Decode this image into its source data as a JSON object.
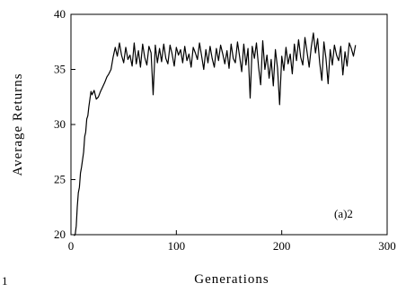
{
  "chart_data": {
    "type": "line",
    "title": "",
    "xlabel": "Generations",
    "ylabel": "Average Returns",
    "xlim": [
      0,
      300
    ],
    "ylim": [
      20,
      40
    ],
    "x_ticks": [
      0,
      100,
      200,
      300
    ],
    "y_ticks": [
      20,
      25,
      30,
      35,
      40
    ],
    "grid": false,
    "annotation": "(a)2",
    "series": [
      {
        "color": "#000000",
        "x": [
          3,
          4,
          5,
          6,
          7,
          8,
          9,
          10,
          11,
          12,
          13,
          14,
          15,
          16,
          17,
          18,
          19,
          20,
          22,
          24,
          26,
          28,
          30,
          32,
          34,
          36,
          38,
          40,
          42,
          44,
          46,
          48,
          50,
          52,
          54,
          56,
          58,
          60,
          62,
          64,
          66,
          68,
          70,
          72,
          74,
          76,
          78,
          80,
          82,
          84,
          86,
          88,
          90,
          92,
          94,
          96,
          98,
          100,
          102,
          104,
          106,
          108,
          110,
          112,
          114,
          116,
          118,
          120,
          122,
          124,
          126,
          128,
          130,
          132,
          134,
          136,
          138,
          140,
          142,
          144,
          146,
          148,
          150,
          152,
          154,
          156,
          158,
          160,
          162,
          164,
          166,
          168,
          170,
          172,
          174,
          176,
          178,
          180,
          182,
          184,
          186,
          188,
          190,
          192,
          194,
          196,
          198,
          200,
          202,
          204,
          206,
          208,
          210,
          212,
          214,
          216,
          218,
          220,
          222,
          224,
          226,
          228,
          230,
          232,
          234,
          236,
          238,
          240,
          242,
          244,
          246,
          248,
          250,
          252,
          254,
          256,
          258,
          260,
          262,
          264,
          266,
          268,
          270
        ],
        "y": [
          19.9,
          20.0,
          20.8,
          22.5,
          23.8,
          24.3,
          25.6,
          26.1,
          26.8,
          27.5,
          28.9,
          29.3,
          30.5,
          30.8,
          31.6,
          32.3,
          33.0,
          32.7,
          33.1,
          32.3,
          32.5,
          33.0,
          33.4,
          33.8,
          34.3,
          34.6,
          35.0,
          36.1,
          37.0,
          36.2,
          37.4,
          36.3,
          35.6,
          37.0,
          35.9,
          36.3,
          35.3,
          37.4,
          35.5,
          36.7,
          35.2,
          37.3,
          36.1,
          35.4,
          37.1,
          36.5,
          32.7,
          37.2,
          35.6,
          36.9,
          35.7,
          37.3,
          36.0,
          35.5,
          37.2,
          36.4,
          35.3,
          37.0,
          36.3,
          36.8,
          35.6,
          37.1,
          35.8,
          36.4,
          35.2,
          37.0,
          36.5,
          35.9,
          37.4,
          36.2,
          35.0,
          36.8,
          35.6,
          37.1,
          36.0,
          35.2,
          36.9,
          35.8,
          37.2,
          36.4,
          35.5,
          36.7,
          35.1,
          37.3,
          36.0,
          35.6,
          37.5,
          36.2,
          34.8,
          37.3,
          35.4,
          36.9,
          32.4,
          37.1,
          36.0,
          37.4,
          35.2,
          33.6,
          37.6,
          35.0,
          36.3,
          34.2,
          35.9,
          33.5,
          36.8,
          35.1,
          31.8,
          36.2,
          34.9,
          37.0,
          35.5,
          36.4,
          34.6,
          37.3,
          35.8,
          37.7,
          36.1,
          35.4,
          37.9,
          36.6,
          35.2,
          37.0,
          38.3,
          36.5,
          37.8,
          35.6,
          34.0,
          37.5,
          36.0,
          33.7,
          36.8,
          35.4,
          37.2,
          36.3,
          35.8,
          37.1,
          34.5,
          36.6,
          35.3,
          37.4,
          36.9,
          36.2,
          37.2
        ]
      }
    ]
  },
  "stray_text": "1"
}
